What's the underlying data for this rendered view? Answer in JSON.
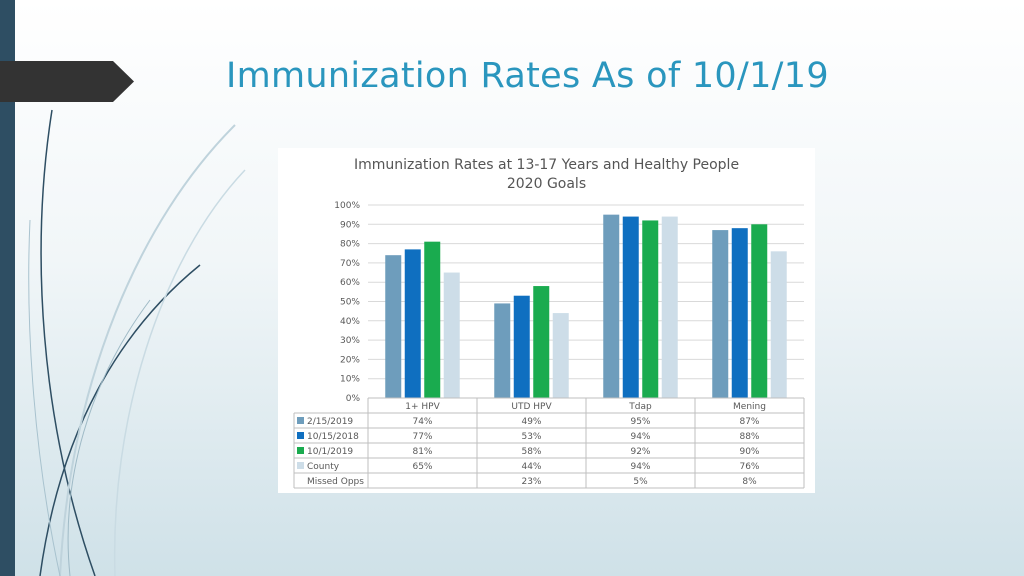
{
  "slide": {
    "title": "Immunization Rates As of 10/1/19"
  },
  "chart_data": {
    "type": "bar",
    "title": "Immunization Rates at 13-17 Years and Healthy People",
    "subtitle": "2020 Goals",
    "categories": [
      "1+ HPV",
      "UTD HPV",
      "Tdap",
      "Mening"
    ],
    "y_ticks": [
      "0%",
      "10%",
      "20%",
      "30%",
      "40%",
      "50%",
      "60%",
      "70%",
      "80%",
      "90%",
      "100%"
    ],
    "ylim": [
      0,
      100
    ],
    "grid": true,
    "legend": "data-table",
    "series": [
      {
        "name": "2/15/2019",
        "color": "#6e9dbc",
        "values": [
          74,
          49,
          95,
          87
        ],
        "labels": [
          "74%",
          "49%",
          "95%",
          "87%"
        ]
      },
      {
        "name": "10/15/2018",
        "color": "#0f6fc0",
        "values": [
          77,
          53,
          94,
          88
        ],
        "labels": [
          "77%",
          "53%",
          "94%",
          "88%"
        ]
      },
      {
        "name": "10/1/2019",
        "color": "#1aab4f",
        "values": [
          81,
          58,
          92,
          90
        ],
        "labels": [
          "81%",
          "58%",
          "92%",
          "90%"
        ]
      },
      {
        "name": "County",
        "color": "#cddde8",
        "values": [
          65,
          44,
          94,
          76
        ],
        "labels": [
          "65%",
          "44%",
          "94%",
          "76%"
        ]
      }
    ],
    "extra_rows": [
      {
        "name": "Missed Opps",
        "labels": [
          "",
          "23%",
          "5%",
          "8%"
        ]
      }
    ]
  }
}
